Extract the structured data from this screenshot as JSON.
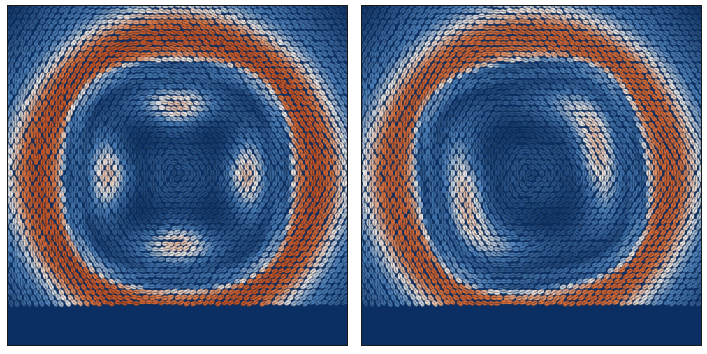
{
  "figure": {
    "panel_count": 2,
    "colormap": {
      "low": "#0b2f62",
      "mid_low": "#4f86c2",
      "mid": "#f4f1ee",
      "high": "#e07a45",
      "peak": "#c9582a"
    },
    "panels": [
      {
        "id": "left",
        "ring_intensity": 1.0,
        "inner_lobes": "symmetric-8",
        "rotation_deg": 0
      },
      {
        "id": "right",
        "ring_intensity": 0.85,
        "inner_lobes": "skewed-4",
        "rotation_deg": 8
      }
    ]
  }
}
